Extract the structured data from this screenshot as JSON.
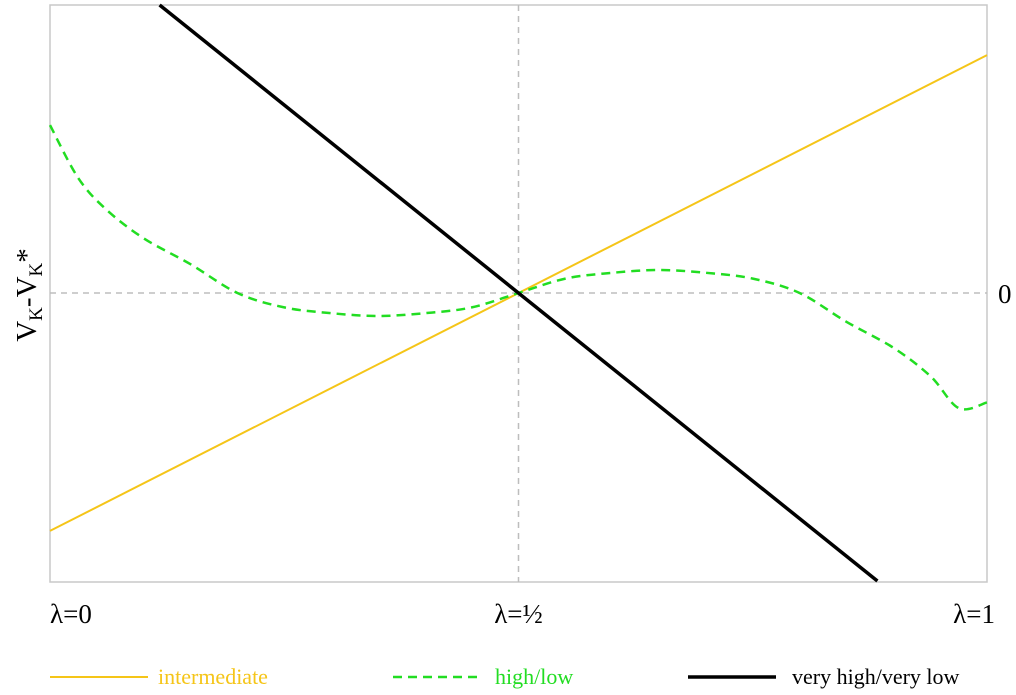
{
  "chart_data": {
    "type": "line",
    "title": "",
    "ylabel": {
      "main": "V",
      "sub1": "K",
      "mid": "-V",
      "sub2": "K",
      "tail": "*"
    },
    "xlabel": "",
    "x_ticks": [
      {
        "x": 0,
        "label": "λ=0"
      },
      {
        "x": 0.5,
        "label": "λ=½"
      },
      {
        "x": 1,
        "label": "λ=1"
      }
    ],
    "y_ticks": [
      {
        "y": 0,
        "label": "0"
      }
    ],
    "xlim": [
      0,
      1
    ],
    "ylim": [
      -1.0,
      1.0
    ],
    "grid": "dashed reference lines at x=0.5 and y=0",
    "legend_position": "bottom",
    "series": [
      {
        "name": "intermediate",
        "color": "#F5C518",
        "style": "solid-thin",
        "x": [
          0,
          1
        ],
        "y": [
          -0.826,
          0.826
        ]
      },
      {
        "name": "high/low",
        "color": "#22DD22",
        "style": "dashed",
        "x": [
          0,
          0.03,
          0.06,
          0.1,
          0.15,
          0.2,
          0.25,
          0.3,
          0.35,
          0.4,
          0.45,
          0.5,
          0.55,
          0.6,
          0.65,
          0.7,
          0.75,
          0.8,
          0.85,
          0.9,
          0.94,
          0.97,
          1
        ],
        "y": [
          0.583,
          0.4,
          0.29,
          0.19,
          0.1,
          0.0,
          -0.05,
          -0.07,
          -0.08,
          -0.07,
          -0.05,
          0.0,
          0.05,
          0.07,
          0.08,
          0.07,
          0.05,
          0.0,
          -0.1,
          -0.19,
          -0.29,
          -0.4,
          -0.38
        ]
      },
      {
        "name": "very high/very low",
        "color": "#000000",
        "style": "solid-thick",
        "x": [
          0.117,
          0.883
        ],
        "y": [
          1.0,
          -1.0
        ]
      }
    ]
  },
  "legend": [
    {
      "label": "intermediate",
      "color": "#F5C518",
      "style": "solid-thin"
    },
    {
      "label": "high/low",
      "color": "#22DD22",
      "style": "dashed"
    },
    {
      "label": "very high/very low",
      "color": "#000000",
      "style": "solid-thick"
    }
  ]
}
